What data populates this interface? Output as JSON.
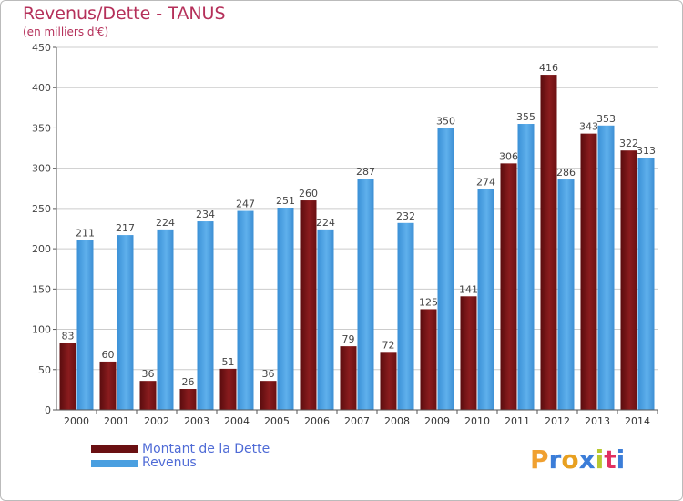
{
  "header": {
    "title": "Revenus/Dette - TANUS",
    "subtitle": "(en milliers d'€)"
  },
  "legend": {
    "dette": "Montant de la Dette",
    "revenus": "Revenus"
  },
  "logo": {
    "letters": [
      "P",
      "r",
      "o",
      "x",
      "i",
      "t",
      "i"
    ],
    "colors": [
      "#f0a030",
      "#3b7dd8",
      "#e8a020",
      "#3b7dd8",
      "#b8c830",
      "#e03060",
      "#3b7dd8"
    ]
  },
  "colors": {
    "dette": "#7a1416",
    "revenus": "#4a9fe0",
    "axis": "#555555",
    "grid": "#cccccc"
  },
  "chart_data": {
    "type": "bar",
    "title": "Revenus/Dette - TANUS",
    "subtitle": "(en milliers d'€)",
    "categories": [
      "2000",
      "2001",
      "2002",
      "2003",
      "2004",
      "2005",
      "2006",
      "2007",
      "2008",
      "2009",
      "2010",
      "2011",
      "2012",
      "2013",
      "2014"
    ],
    "series": [
      {
        "name": "Montant de la Dette",
        "values": [
          83,
          60,
          36,
          26,
          51,
          36,
          260,
          79,
          72,
          125,
          141,
          306,
          416,
          343,
          322
        ]
      },
      {
        "name": "Revenus",
        "values": [
          211,
          217,
          224,
          234,
          247,
          251,
          224,
          287,
          232,
          350,
          274,
          355,
          286,
          353,
          313
        ]
      }
    ],
    "ylim": [
      0,
      450
    ],
    "yticks": [
      0,
      50,
      100,
      150,
      200,
      250,
      300,
      350,
      400,
      450
    ],
    "grid": true,
    "legend_position": "bottom-left"
  }
}
